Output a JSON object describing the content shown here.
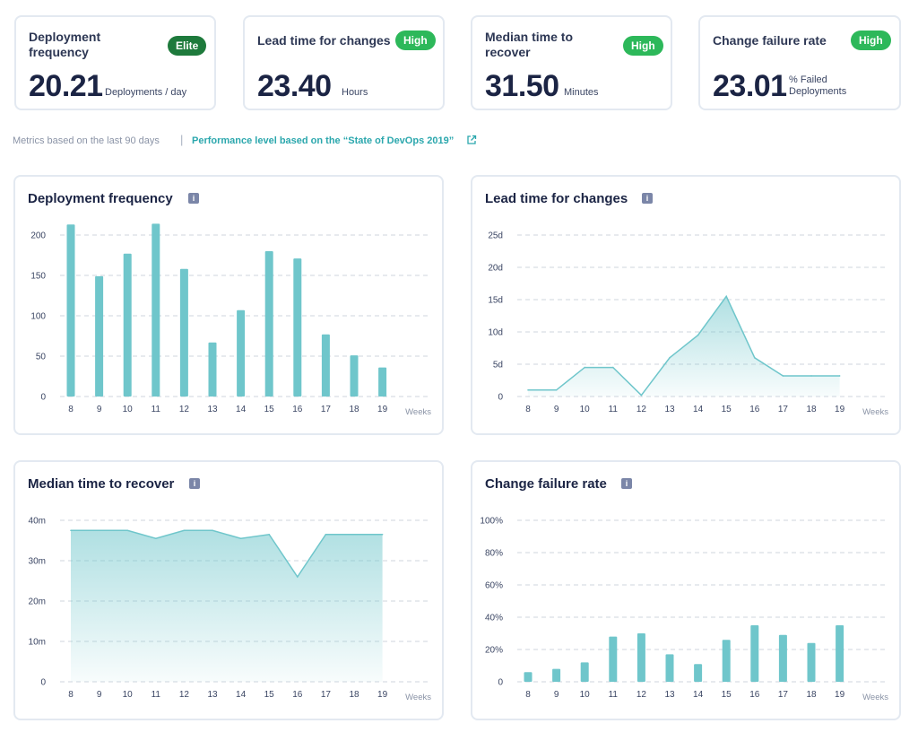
{
  "metrics": [
    {
      "title": "Deployment frequency",
      "badge": "Elite",
      "value": "20.21",
      "unit": "Deployments / day"
    },
    {
      "title": "Lead time for changes",
      "badge": "High",
      "value": "23.40",
      "unit": "Hours"
    },
    {
      "title": "Median time to recover",
      "badge": "High",
      "value": "31.50",
      "unit": "Minutes"
    },
    {
      "title": "Change failure rate",
      "badge": "High",
      "value": "23.01",
      "unit_line1": "% Failed",
      "unit_line2": "Deployments"
    }
  ],
  "note": {
    "text": "Metrics based on the last 90 days",
    "separator": "|",
    "link": "Performance level based on the “State of DevOps 2019”"
  },
  "info_glyph": "i",
  "colors": {
    "bar": "#6fc6cb",
    "line": "#6fc6cb",
    "elite": "#1e7a3c",
    "high": "#2db85a",
    "link": "#2ba7ad"
  },
  "chart_data": [
    {
      "type": "bar",
      "title": "Deployment frequency",
      "categories": [
        "8",
        "9",
        "10",
        "11",
        "12",
        "13",
        "14",
        "15",
        "16",
        "17",
        "18",
        "19"
      ],
      "values": [
        213,
        149,
        177,
        214,
        158,
        67,
        107,
        180,
        171,
        77,
        51,
        36
      ],
      "xlabel": "Weeks",
      "ylim": [
        0,
        200
      ],
      "yticks": [
        "0",
        "50",
        "100",
        "150",
        "200"
      ]
    },
    {
      "type": "area",
      "title": "Lead time for changes",
      "categories": [
        "8",
        "9",
        "10",
        "11",
        "12",
        "13",
        "14",
        "15",
        "16",
        "17",
        "18",
        "19"
      ],
      "values": [
        1,
        1,
        4.5,
        4.5,
        0.2,
        6,
        9.5,
        15.5,
        6,
        3.2,
        3.2,
        3.2
      ],
      "xlabel": "Weeks",
      "ylim": [
        0,
        25
      ],
      "yticks": [
        "0",
        "5d",
        "10d",
        "15d",
        "20d",
        "25d"
      ]
    },
    {
      "type": "area",
      "title": "Median time to recover",
      "categories": [
        "8",
        "9",
        "10",
        "11",
        "12",
        "13",
        "14",
        "15",
        "16",
        "17",
        "18",
        "19"
      ],
      "values": [
        37.5,
        37.5,
        37.5,
        35.5,
        37.5,
        37.5,
        35.5,
        36.5,
        26,
        36.5,
        36.5,
        36.5
      ],
      "xlabel": "Weeks",
      "ylim": [
        0,
        40
      ],
      "yticks": [
        "0",
        "10m",
        "20m",
        "30m",
        "40m"
      ]
    },
    {
      "type": "bar",
      "title": "Change failure rate",
      "categories": [
        "8",
        "9",
        "10",
        "11",
        "12",
        "13",
        "14",
        "15",
        "16",
        "17",
        "18",
        "19"
      ],
      "values": [
        6,
        8,
        12,
        28,
        30,
        17,
        11,
        26,
        35,
        29,
        24,
        35
      ],
      "xlabel": "Weeks",
      "ylim": [
        0,
        100
      ],
      "yticks": [
        "0",
        "20%",
        "40%",
        "60%",
        "80%",
        "100%"
      ]
    }
  ]
}
